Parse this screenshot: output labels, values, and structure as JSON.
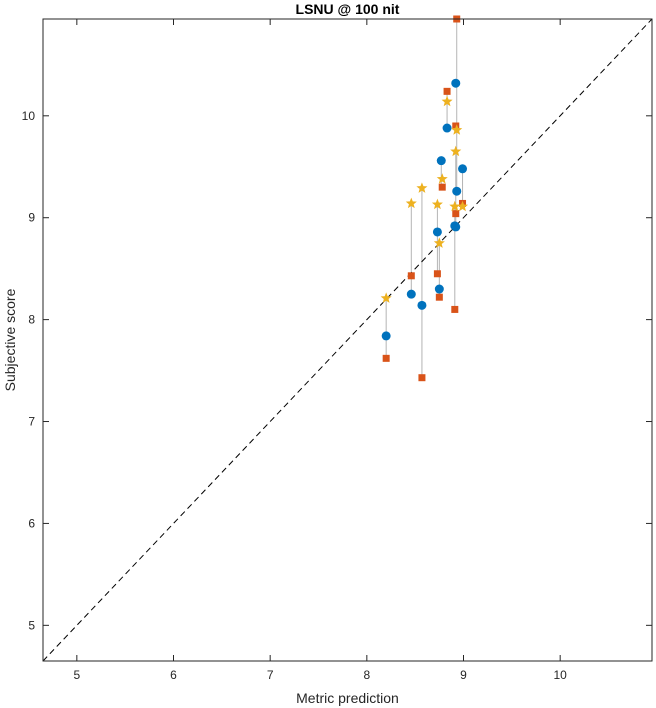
{
  "chart_data": {
    "type": "scatter",
    "title": "LSNU @ 100 nit",
    "xlabel": "Metric prediction",
    "ylabel": "Subjective score",
    "xlim": [
      4.65,
      10.95
    ],
    "ylim": [
      4.65,
      10.95
    ],
    "xticks": [
      5,
      6,
      7,
      8,
      9,
      10
    ],
    "yticks": [
      5,
      6,
      7,
      8,
      9,
      10
    ],
    "grid": false,
    "legend": "none",
    "reference_line": {
      "style": "dashed",
      "color": "#000000",
      "from": [
        4.65,
        4.65
      ],
      "to": [
        10.95,
        10.95
      ]
    },
    "series": [
      {
        "marker": "circle",
        "color": "#0072BD",
        "points": [
          {
            "x": 8.2,
            "y": 7.84
          },
          {
            "x": 8.46,
            "y": 8.25
          },
          {
            "x": 8.57,
            "y": 8.14
          },
          {
            "x": 8.73,
            "y": 8.86
          },
          {
            "x": 8.75,
            "y": 8.3
          },
          {
            "x": 8.77,
            "y": 9.56
          },
          {
            "x": 8.83,
            "y": 9.88
          },
          {
            "x": 8.91,
            "y": 8.92
          },
          {
            "x": 8.92,
            "y": 8.91
          },
          {
            "x": 8.92,
            "y": 10.32
          },
          {
            "x": 8.93,
            "y": 9.26
          },
          {
            "x": 8.99,
            "y": 9.48
          }
        ]
      },
      {
        "marker": "square",
        "color": "#D95319",
        "points": [
          {
            "x": 8.2,
            "y": 7.62
          },
          {
            "x": 8.46,
            "y": 8.43
          },
          {
            "x": 8.57,
            "y": 7.43
          },
          {
            "x": 8.73,
            "y": 8.45
          },
          {
            "x": 8.75,
            "y": 8.22
          },
          {
            "x": 8.78,
            "y": 9.3
          },
          {
            "x": 8.83,
            "y": 10.24
          },
          {
            "x": 8.91,
            "y": 8.1
          },
          {
            "x": 8.92,
            "y": 9.04
          },
          {
            "x": 8.93,
            "y": 10.95
          },
          {
            "x": 8.92,
            "y": 9.9
          },
          {
            "x": 8.99,
            "y": 9.14
          }
        ]
      },
      {
        "marker": "star",
        "color": "#EDB120",
        "points": [
          {
            "x": 8.2,
            "y": 8.21
          },
          {
            "x": 8.46,
            "y": 9.14
          },
          {
            "x": 8.57,
            "y": 9.29
          },
          {
            "x": 8.73,
            "y": 9.13
          },
          {
            "x": 8.75,
            "y": 8.75
          },
          {
            "x": 8.78,
            "y": 9.38
          },
          {
            "x": 8.83,
            "y": 10.14
          },
          {
            "x": 8.91,
            "y": 9.11
          },
          {
            "x": 8.92,
            "y": 9.65
          },
          {
            "x": 8.93,
            "y": 9.86
          },
          {
            "x": 8.99,
            "y": 9.11
          }
        ]
      }
    ],
    "connectors": [
      {
        "x": 8.2,
        "y1": 7.62,
        "y2": 8.21
      },
      {
        "x": 8.46,
        "y1": 8.25,
        "y2": 9.14
      },
      {
        "x": 8.57,
        "y1": 7.43,
        "y2": 9.29
      },
      {
        "x": 8.73,
        "y1": 8.45,
        "y2": 9.13
      },
      {
        "x": 8.75,
        "y1": 8.22,
        "y2": 8.75
      },
      {
        "x": 8.77,
        "y1": 9.3,
        "y2": 9.56
      },
      {
        "x": 8.83,
        "y1": 9.88,
        "y2": 10.24
      },
      {
        "x": 8.91,
        "y1": 8.1,
        "y2": 9.11
      },
      {
        "x": 8.92,
        "y1": 8.91,
        "y2": 9.65
      },
      {
        "x": 8.93,
        "y1": 9.26,
        "y2": 10.95
      },
      {
        "x": 8.99,
        "y1": 9.11,
        "y2": 9.48
      }
    ]
  }
}
